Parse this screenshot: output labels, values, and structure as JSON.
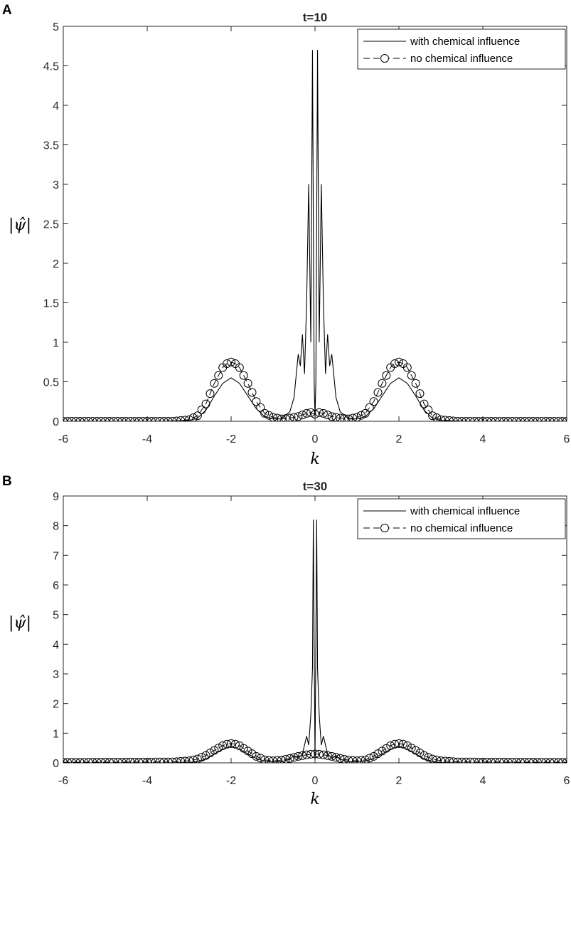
{
  "chart_data": [
    {
      "panel": "A",
      "type": "line",
      "title": "t=10",
      "xlabel": "k",
      "ylabel": "|ψ̂|",
      "xlim": [
        -6,
        6
      ],
      "ylim": [
        0,
        5
      ],
      "xticks": [
        "-6",
        "-4",
        "-2",
        "0",
        "2",
        "4",
        "6"
      ],
      "yticks": [
        "0",
        "0.5",
        "1",
        "1.5",
        "2",
        "2.5",
        "3",
        "3.5",
        "4",
        "4.5",
        "5"
      ],
      "legend_position": "top-right",
      "grid": false,
      "series": [
        {
          "name": "with chemical influence",
          "style": "solid",
          "x": [
            -6,
            -3.6,
            -3.0,
            -2.8,
            -2.6,
            -2.4,
            -2.2,
            -2.0,
            -1.8,
            -1.6,
            -1.4,
            -1.2,
            -1.0,
            -0.8,
            -0.7,
            -0.6,
            -0.5,
            -0.4,
            -0.35,
            -0.3,
            -0.25,
            -0.2,
            -0.15,
            -0.1,
            -0.06,
            -0.04,
            -0.02,
            0,
            0.02,
            0.04,
            0.06,
            0.1,
            0.15,
            0.2,
            0.25,
            0.3,
            0.35,
            0.4,
            0.5,
            0.6,
            0.7,
            0.8,
            1.0,
            1.2,
            1.4,
            1.6,
            1.8,
            2.0,
            2.2,
            2.4,
            2.6,
            2.8,
            3.0,
            3.6,
            6
          ],
          "y": [
            0,
            0,
            0.01,
            0.04,
            0.14,
            0.32,
            0.48,
            0.55,
            0.48,
            0.32,
            0.16,
            0.06,
            0.03,
            0.03,
            0.08,
            0.12,
            0.3,
            0.85,
            0.7,
            1.1,
            0.6,
            1.5,
            3.0,
            1.0,
            4.7,
            2.5,
            0.5,
            0.05,
            0.5,
            2.5,
            4.7,
            1.0,
            3.0,
            1.5,
            0.6,
            1.1,
            0.7,
            0.85,
            0.3,
            0.12,
            0.08,
            0.03,
            0.03,
            0.06,
            0.16,
            0.32,
            0.48,
            0.55,
            0.48,
            0.32,
            0.14,
            0.04,
            0.01,
            0,
            0
          ]
        },
        {
          "name": "no chemical influence",
          "style": "dashed-circle",
          "x": [
            -6,
            -3.4,
            -3.0,
            -2.8,
            -2.6,
            -2.4,
            -2.2,
            -2.1,
            -2.0,
            -1.9,
            -1.8,
            -1.6,
            -1.4,
            -1.2,
            -1.0,
            -0.8,
            -0.6,
            -0.4,
            -0.2,
            -0.1,
            0,
            0.1,
            0.2,
            0.4,
            0.6,
            0.8,
            1.0,
            1.2,
            1.4,
            1.6,
            1.8,
            1.9,
            2.0,
            2.1,
            2.2,
            2.4,
            2.6,
            2.8,
            3.0,
            3.4,
            6
          ],
          "y": [
            0,
            0,
            0.02,
            0.07,
            0.22,
            0.48,
            0.68,
            0.73,
            0.75,
            0.73,
            0.68,
            0.48,
            0.25,
            0.1,
            0.05,
            0.03,
            0.04,
            0.06,
            0.1,
            0.11,
            0.09,
            0.11,
            0.1,
            0.06,
            0.04,
            0.03,
            0.05,
            0.1,
            0.25,
            0.48,
            0.68,
            0.73,
            0.75,
            0.73,
            0.68,
            0.48,
            0.22,
            0.07,
            0.02,
            0,
            0
          ]
        }
      ]
    },
    {
      "panel": "B",
      "type": "line",
      "title": "t=30",
      "xlabel": "k",
      "ylabel": "|ψ̂|",
      "xlim": [
        -6,
        6
      ],
      "ylim": [
        0,
        9
      ],
      "xticks": [
        "-6",
        "-4",
        "-2",
        "0",
        "2",
        "4",
        "6"
      ],
      "yticks": [
        "0",
        "1",
        "2",
        "3",
        "4",
        "5",
        "6",
        "7",
        "8",
        "9"
      ],
      "legend_position": "top-right",
      "grid": false,
      "series": [
        {
          "name": "with chemical influence",
          "style": "solid",
          "x": [
            -6,
            -3.6,
            -3.0,
            -2.8,
            -2.6,
            -2.4,
            -2.2,
            -2.0,
            -1.8,
            -1.6,
            -1.4,
            -1.2,
            -1.0,
            -0.8,
            -0.6,
            -0.5,
            -0.4,
            -0.3,
            -0.2,
            -0.15,
            -0.1,
            -0.06,
            -0.04,
            -0.02,
            0,
            0.02,
            0.04,
            0.06,
            0.1,
            0.15,
            0.2,
            0.3,
            0.4,
            0.5,
            0.6,
            0.8,
            1.0,
            1.2,
            1.4,
            1.6,
            1.8,
            2.0,
            2.2,
            2.4,
            2.6,
            2.8,
            3.0,
            3.6,
            6
          ],
          "y": [
            0,
            0,
            0.01,
            0.04,
            0.13,
            0.3,
            0.46,
            0.55,
            0.46,
            0.3,
            0.15,
            0.06,
            0.03,
            0.04,
            0.12,
            0.25,
            0.15,
            0.3,
            0.9,
            0.6,
            1.6,
            3.2,
            8.2,
            4.0,
            0.1,
            4.0,
            8.2,
            3.2,
            1.6,
            0.6,
            0.9,
            0.3,
            0.15,
            0.25,
            0.12,
            0.04,
            0.03,
            0.06,
            0.15,
            0.3,
            0.46,
            0.55,
            0.46,
            0.3,
            0.13,
            0.04,
            0.01,
            0,
            0
          ]
        },
        {
          "name": "no chemical influence",
          "style": "dashed-circle",
          "x": [
            -6,
            -3.4,
            -3.0,
            -2.8,
            -2.6,
            -2.4,
            -2.2,
            -2.1,
            -2.0,
            -1.9,
            -1.8,
            -1.6,
            -1.4,
            -1.2,
            -1.0,
            -0.8,
            -0.6,
            -0.4,
            -0.2,
            -0.1,
            0,
            0.1,
            0.2,
            0.4,
            0.6,
            0.8,
            1.0,
            1.2,
            1.4,
            1.6,
            1.8,
            1.9,
            2.0,
            2.1,
            2.2,
            2.4,
            2.6,
            2.8,
            3.0,
            3.4,
            6
          ],
          "y": [
            0.02,
            0.03,
            0.07,
            0.13,
            0.25,
            0.42,
            0.58,
            0.63,
            0.65,
            0.63,
            0.58,
            0.4,
            0.22,
            0.1,
            0.07,
            0.09,
            0.15,
            0.22,
            0.27,
            0.29,
            0.3,
            0.29,
            0.27,
            0.22,
            0.15,
            0.09,
            0.07,
            0.1,
            0.22,
            0.4,
            0.58,
            0.63,
            0.65,
            0.63,
            0.58,
            0.42,
            0.25,
            0.13,
            0.07,
            0.03,
            0.02
          ]
        }
      ]
    }
  ]
}
